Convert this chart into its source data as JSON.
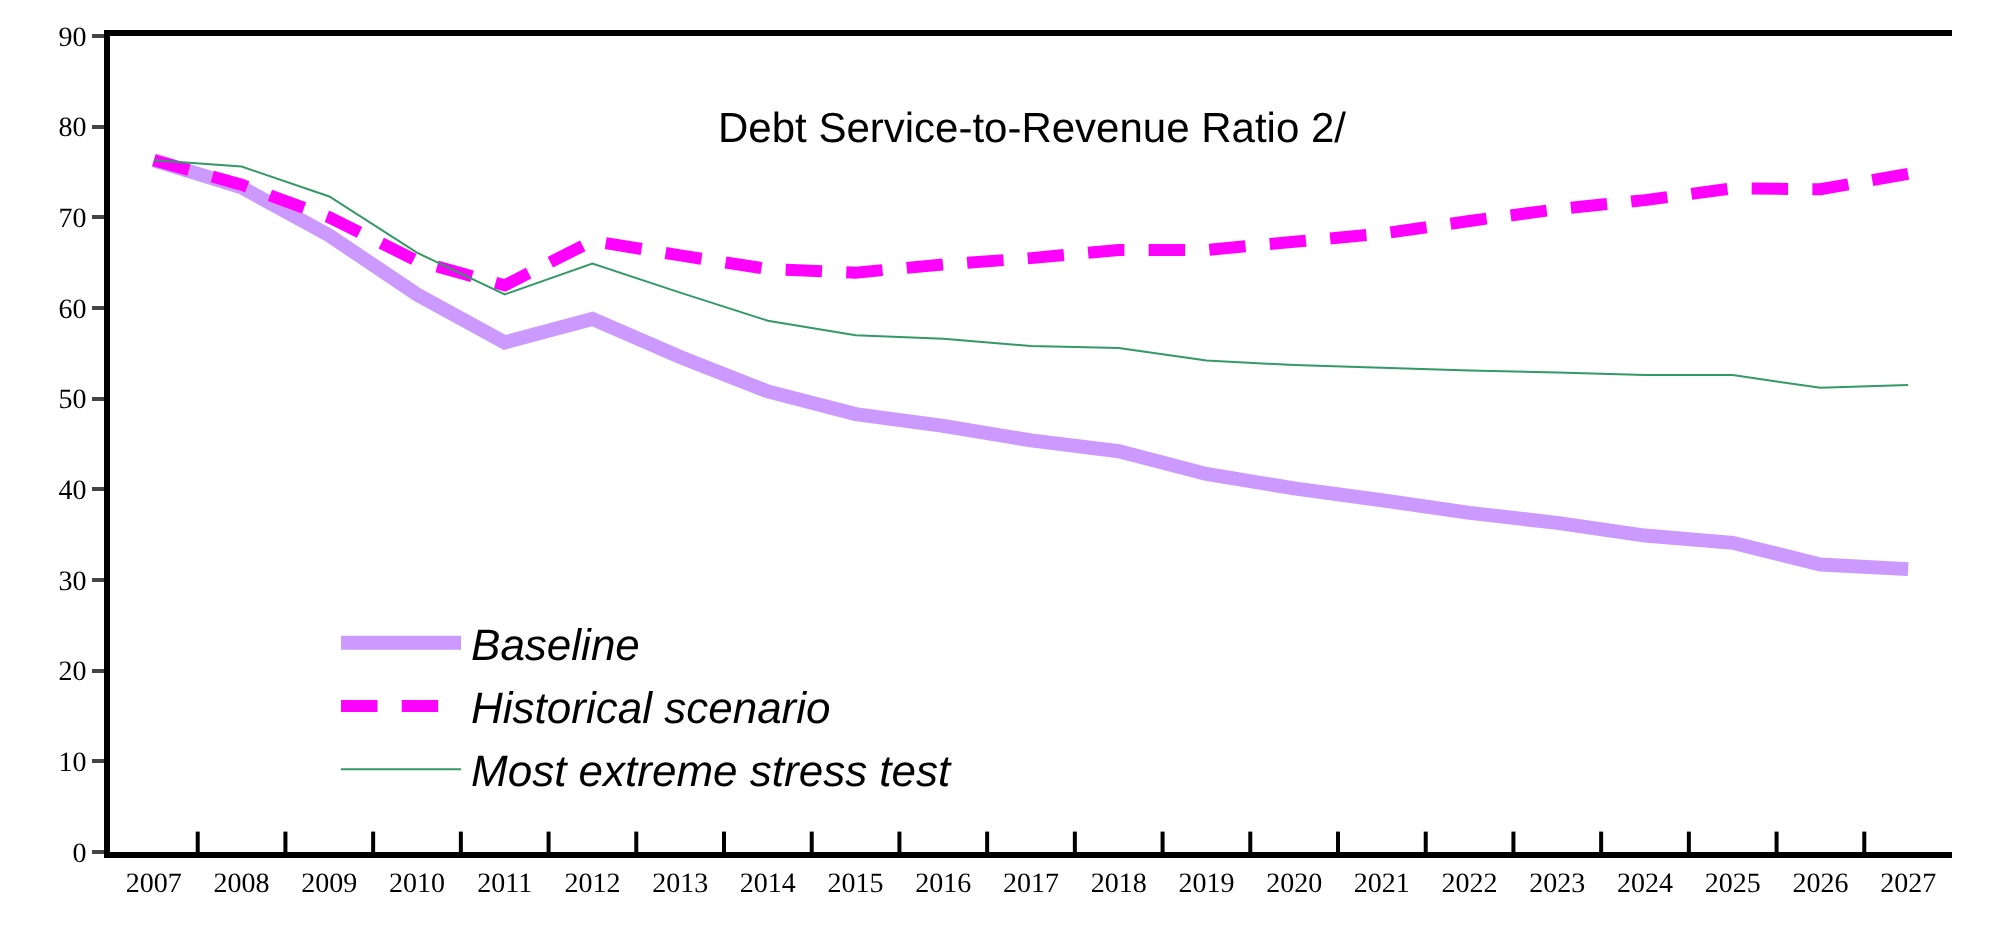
{
  "chart_data": {
    "type": "line",
    "title": "Debt Service-to-Revenue Ratio 2/",
    "categories": [
      "2007",
      "2008",
      "2009",
      "2010",
      "2011",
      "2012",
      "2013",
      "2014",
      "2015",
      "2016",
      "2017",
      "2018",
      "2019",
      "2020",
      "2021",
      "2022",
      "2023",
      "2024",
      "2025",
      "2026",
      "2027"
    ],
    "series": [
      {
        "name": "Baseline",
        "color": "#cc99ff",
        "line_style": "solid",
        "values": [
          76.3,
          73.3,
          68,
          61.5,
          56.2,
          58.8,
          54.6,
          50.8,
          48.3,
          47,
          45.4,
          44.2,
          41.7,
          40.1,
          38.8,
          37.4,
          36.3,
          34.9,
          34.1,
          31.7,
          31.2
        ]
      },
      {
        "name": "Historical scenario",
        "color": "#ff00ff",
        "line_style": "dashed",
        "values": [
          76.3,
          73.6,
          70,
          65.2,
          62.5,
          67.4,
          65.8,
          64.3,
          63.9,
          64.8,
          65.5,
          66.4,
          66.4,
          67.3,
          68.2,
          69.6,
          70.9,
          71.9,
          73.2,
          73.1,
          74.8
        ]
      },
      {
        "name": "Most extreme stress test",
        "color": "#339966",
        "line_style": "solid",
        "values": [
          76.3,
          75.6,
          72.3,
          66.1,
          61.5,
          64.9,
          61.7,
          58.6,
          57.0,
          56.6,
          55.8,
          55.6,
          54.2,
          53.7,
          53.4,
          53.1,
          52.9,
          52.6,
          52.6,
          51.2,
          51.5
        ]
      }
    ],
    "ylim": [
      0,
      90
    ],
    "yticks": [
      0,
      10,
      20,
      30,
      40,
      50,
      60,
      70,
      80,
      90
    ],
    "legend": "bottom left",
    "marker": "none"
  }
}
